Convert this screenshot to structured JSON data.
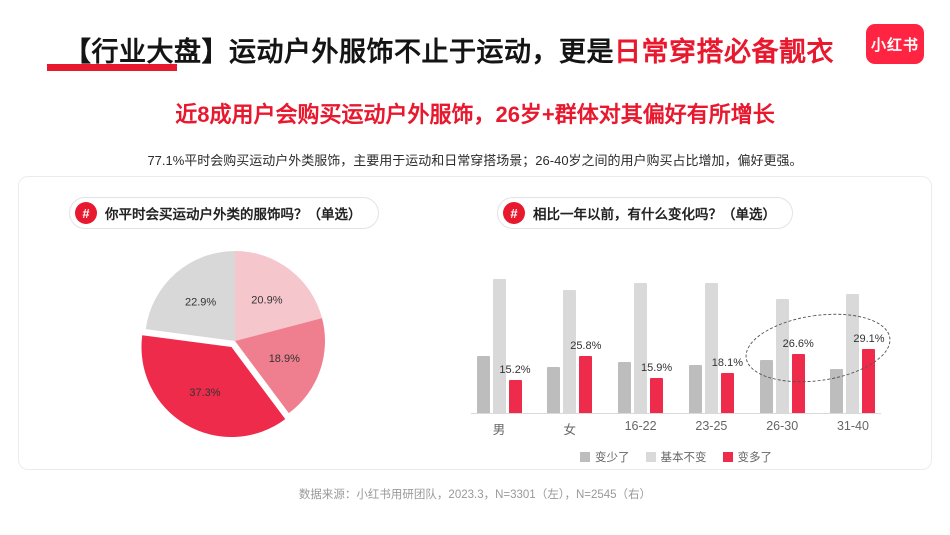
{
  "header": {
    "title_black": "【行业大盘】运动户外服饰不止于运动，更是",
    "title_red": "日常穿搭必备靓衣",
    "logo_text": "小红书"
  },
  "subtitle": "近8成用户会购买运动户外服饰，26岁+群体对其偏好有所增长",
  "description": "77.1%平时会购买运动户外类服饰，主要用于运动和日常穿搭场景；26-40岁之间的用户购买占比增加，偏好更强。",
  "footer": "数据来源：小红书用研团队，2023.3，N=3301（左），N=2545（右）",
  "icons": {
    "hash": "#"
  },
  "colors": {
    "accent_red": "#e8182e",
    "logo_red": "#ff2442",
    "bar_less_gray": "#bdbdbd",
    "bar_same_gray": "#d9d9d9",
    "bar_more_red": "#ee2b4b"
  },
  "chart_data": [
    {
      "type": "pie",
      "title": "你平时会买运动户外类的服饰吗？（单选）",
      "values": [
        20.9,
        18.9,
        37.3,
        22.9
      ],
      "labels": [
        "20.9%",
        "18.9%",
        "37.3%",
        "22.9%"
      ],
      "colors": [
        "#f6c6cd",
        "#ef7f8e",
        "#ee2b4b",
        "#d8d8d8"
      ],
      "start_angle_deg": -90,
      "clockwise": true,
      "exploded_index": 2,
      "legend": "none"
    },
    {
      "type": "bar",
      "title": "相比一年以前，有什么变化吗？（单选）",
      "categories": [
        "男",
        "女",
        "16-22",
        "23-25",
        "26-30",
        "31-40"
      ],
      "series": [
        {
          "name": "变少了",
          "color": "#bdbdbd",
          "values": [
            26,
            21,
            23,
            22,
            24,
            20
          ]
        },
        {
          "name": "基本不变",
          "color": "#d9d9d9",
          "values": [
            61,
            56,
            59,
            59,
            52,
            54
          ]
        },
        {
          "name": "变多了",
          "color": "#ee2b4b",
          "values": [
            15.2,
            25.8,
            15.9,
            18.1,
            26.6,
            29.1
          ],
          "labels": [
            "15.2%",
            "25.8%",
            "15.9%",
            "18.1%",
            "26.6%",
            "29.1%"
          ]
        }
      ],
      "ylim": [
        0,
        70
      ],
      "grid": false,
      "legend_position": "bottom",
      "annotation": "dashed ellipse highlighting 变多了 bars of 26-30 and 31-40 groups"
    }
  ]
}
